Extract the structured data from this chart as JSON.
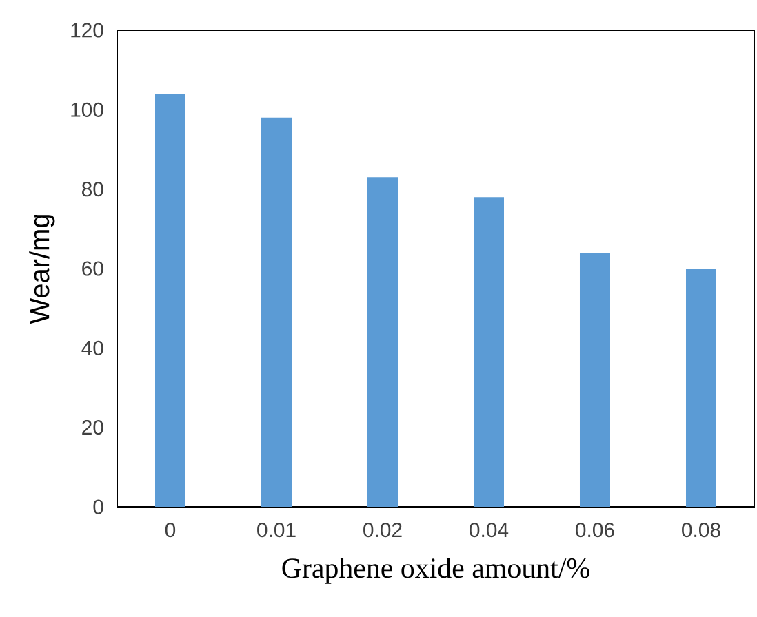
{
  "chart_data": {
    "type": "bar",
    "xlabel": "Graphene oxide amount/%",
    "ylabel": "Wear/mg",
    "categories": [
      "0",
      "0.01",
      "0.02",
      "0.04",
      "0.06",
      "0.08"
    ],
    "values": [
      104,
      98,
      83,
      78,
      64,
      60
    ],
    "color": "#5b9bd5",
    "ylim": [
      0,
      120
    ],
    "yticks": [
      0,
      20,
      40,
      60,
      80,
      100,
      120
    ],
    "grid": false
  }
}
